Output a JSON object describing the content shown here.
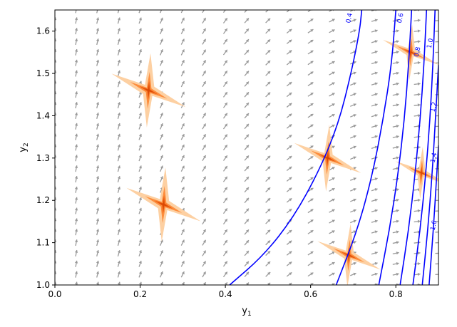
{
  "chart_data": {
    "type": "quiver-contour",
    "xlabel": "y",
    "xlabel_sub": "1",
    "ylabel": "y",
    "ylabel_sub": "2",
    "xlim": [
      0.0,
      0.9
    ],
    "ylim": [
      1.0,
      1.65
    ],
    "xticks": [
      "0.0",
      "0.2",
      "0.4",
      "0.6",
      "0.8"
    ],
    "xtick_values": [
      0.0,
      0.2,
      0.4,
      0.6,
      0.8
    ],
    "yticks": [
      "1.0",
      "1.1",
      "1.2",
      "1.3",
      "1.4",
      "1.5",
      "1.6"
    ],
    "ytick_values": [
      1.0,
      1.1,
      1.2,
      1.3,
      1.4,
      1.5,
      1.6
    ],
    "grid": false,
    "vector_field": {
      "color": "#999999",
      "x_start": 0.0,
      "x_step": 0.05,
      "y_start": 1.0,
      "y_step": 0.025
    },
    "contour_color": "#0000ff",
    "contour_levels": [
      {
        "level": 0.4,
        "label": "0.4",
        "points": [
          [
            0.41,
            1.0
          ],
          [
            0.49,
            1.07
          ],
          [
            0.56,
            1.16
          ],
          [
            0.62,
            1.27
          ],
          [
            0.665,
            1.38
          ],
          [
            0.695,
            1.5
          ],
          [
            0.715,
            1.6
          ],
          [
            0.72,
            1.65
          ]
        ],
        "label_at": [
          0.695,
          1.63
        ]
      },
      {
        "level": 0.6,
        "label": "0.6",
        "points": [
          [
            0.66,
            1.0
          ],
          [
            0.71,
            1.13
          ],
          [
            0.745,
            1.26
          ],
          [
            0.77,
            1.39
          ],
          [
            0.79,
            1.52
          ],
          [
            0.8,
            1.65
          ]
        ],
        "label_at": [
          0.815,
          1.63
        ]
      },
      {
        "level": 0.8,
        "label": "0.8",
        "points": [
          [
            0.76,
            1.0
          ],
          [
            0.785,
            1.13
          ],
          [
            0.805,
            1.26
          ],
          [
            0.82,
            1.39
          ],
          [
            0.83,
            1.52
          ],
          [
            0.837,
            1.65
          ]
        ],
        "label_at": [
          0.855,
          1.55
        ]
      },
      {
        "level": 1.0,
        "label": "1.0",
        "points": [
          [
            0.81,
            1.0
          ],
          [
            0.83,
            1.13
          ],
          [
            0.845,
            1.26
          ],
          [
            0.857,
            1.39
          ],
          [
            0.866,
            1.52
          ],
          [
            0.872,
            1.65
          ]
        ],
        "label_at": [
          0.885,
          1.57
        ]
      },
      {
        "level": 1.2,
        "label": "1.2",
        "points": [
          [
            0.84,
            1.0
          ],
          [
            0.857,
            1.13
          ],
          [
            0.87,
            1.26
          ],
          [
            0.88,
            1.39
          ],
          [
            0.887,
            1.52
          ],
          [
            0.892,
            1.65
          ]
        ],
        "label_at": [
          0.895,
          1.42
        ]
      },
      {
        "level": 1.4,
        "label": "1.4",
        "points": [
          [
            0.862,
            1.0
          ],
          [
            0.875,
            1.13
          ],
          [
            0.885,
            1.26
          ],
          [
            0.893,
            1.39
          ],
          [
            0.9,
            1.52
          ]
        ],
        "label_at": [
          0.9,
          1.3
        ]
      },
      {
        "level": 1.6,
        "label": "1.6",
        "points": [
          [
            0.878,
            1.0
          ],
          [
            0.888,
            1.13
          ],
          [
            0.896,
            1.26
          ],
          [
            0.9,
            1.33
          ]
        ],
        "label_at": [
          0.9,
          1.14
        ]
      }
    ],
    "density_colors": [
      "#fdd0a2",
      "#fd8d3c",
      "#e6550d",
      "#d94801"
    ],
    "density_blobs": [
      {
        "x": 0.22,
        "y": 1.46,
        "size": 1.0
      },
      {
        "x": 0.255,
        "y": 1.19,
        "size": 1.0
      },
      {
        "x": 0.64,
        "y": 1.3,
        "size": 0.9
      },
      {
        "x": 0.69,
        "y": 1.07,
        "size": 0.85
      },
      {
        "x": 0.835,
        "y": 1.55,
        "size": 0.75
      },
      {
        "x": 0.86,
        "y": 1.265,
        "size": 0.7
      }
    ]
  }
}
